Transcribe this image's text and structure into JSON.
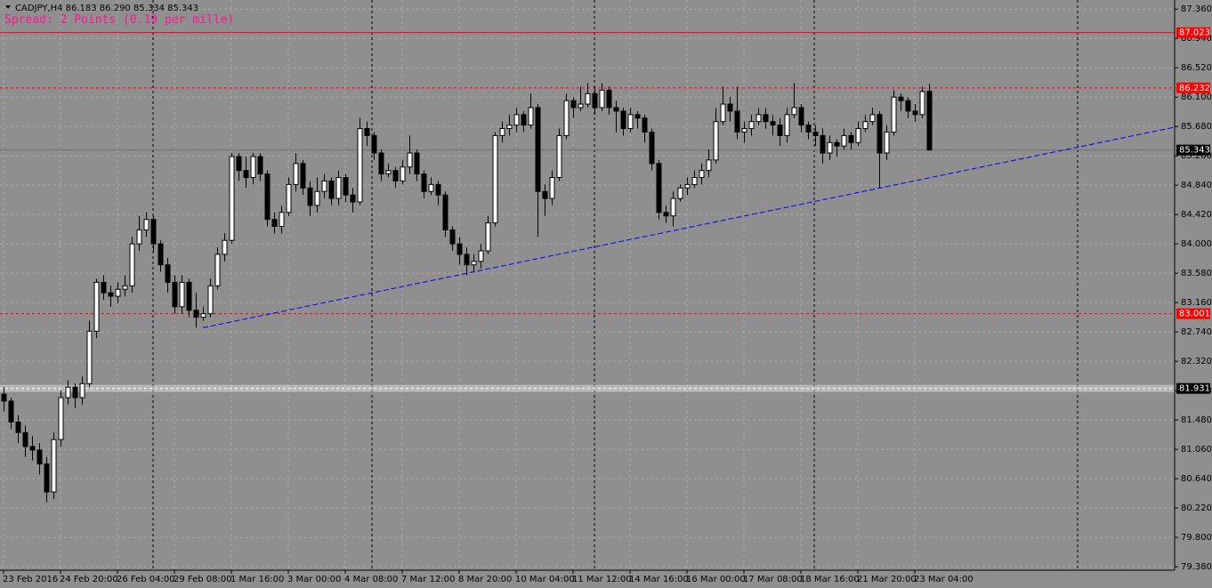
{
  "chart_data": {
    "type": "candlestick",
    "header": "CADJPY,H4  86.183 86.290 85.334 85.343",
    "subtitle": "Spread: 2 Points (0.19 per mille)",
    "categories": [
      "23 Feb 2016",
      null,
      null,
      null,
      null,
      null,
      null,
      null,
      "24 Feb 20:00",
      null,
      null,
      null,
      null,
      null,
      null,
      null,
      "26 Feb 04:00",
      null,
      null,
      null,
      null,
      null,
      null,
      null,
      "29 Feb 08:00",
      null,
      null,
      null,
      null,
      null,
      null,
      null,
      "1 Mar 16:00",
      null,
      null,
      null,
      null,
      null,
      null,
      null,
      "3 Mar 00:00",
      null,
      null,
      null,
      null,
      null,
      null,
      null,
      "4 Mar 08:00",
      null,
      null,
      null,
      null,
      null,
      null,
      null,
      "7 Mar 12:00",
      null,
      null,
      null,
      null,
      null,
      null,
      null,
      "8 Mar 20:00",
      null,
      null,
      null,
      null,
      null,
      null,
      null,
      "10 Mar 04:00",
      null,
      null,
      null,
      null,
      null,
      null,
      null,
      "11 Mar 12:00",
      null,
      null,
      null,
      null,
      null,
      null,
      null,
      "14 Mar 16:00",
      null,
      null,
      null,
      null,
      null,
      null,
      null,
      "16 Mar 00:00",
      null,
      null,
      null,
      null,
      null,
      null,
      null,
      "17 Mar 08:00",
      null,
      null,
      null,
      null,
      null,
      null,
      null,
      "18 Mar 16:00",
      null,
      null,
      null,
      null,
      null,
      null,
      null,
      "21 Mar 20:00",
      null,
      null,
      null,
      null,
      null,
      null,
      null,
      "23 Mar 04:00",
      null,
      null
    ],
    "open": [
      81.85,
      81.75,
      81.45,
      81.3,
      81.1,
      81.05,
      80.85,
      80.45,
      81.2,
      81.8,
      81.95,
      81.8,
      82.0,
      82.75,
      83.45,
      83.3,
      83.25,
      83.35,
      83.4,
      84.0,
      84.2,
      84.35,
      84.0,
      83.7,
      83.45,
      83.1,
      83.45,
      83.05,
      82.95,
      83.0,
      83.4,
      83.85,
      84.05,
      85.25,
      85.05,
      84.95,
      85.25,
      85.0,
      84.35,
      84.25,
      84.45,
      84.85,
      85.15,
      84.8,
      84.55,
      84.75,
      84.9,
      84.65,
      84.95,
      84.7,
      84.6,
      85.65,
      85.55,
      85.3,
      85.0,
      85.05,
      84.9,
      85.1,
      85.3,
      85.0,
      84.75,
      84.85,
      84.7,
      84.2,
      84.0,
      83.85,
      83.7,
      83.75,
      83.9,
      84.3,
      85.55,
      85.65,
      85.7,
      85.85,
      85.7,
      85.95,
      84.75,
      84.65,
      84.95,
      85.55,
      86.05,
      85.95,
      86.0,
      86.15,
      85.95,
      86.2,
      85.95,
      85.9,
      85.65,
      85.85,
      85.8,
      85.6,
      85.15,
      84.45,
      84.4,
      84.65,
      84.8,
      84.85,
      84.95,
      85.05,
      85.2,
      85.75,
      86.0,
      85.9,
      85.6,
      85.65,
      85.75,
      85.85,
      85.75,
      85.7,
      85.55,
      85.85,
      85.95,
      85.7,
      85.6,
      85.55,
      85.3,
      85.45,
      85.4,
      85.55,
      85.45,
      85.65,
      85.75,
      85.85,
      85.3,
      85.6,
      86.1,
      86.05,
      85.9,
      85.85,
      86.183
    ],
    "high": [
      81.95,
      81.8,
      81.55,
      81.4,
      81.25,
      81.15,
      80.95,
      81.3,
      81.9,
      82.05,
      82.0,
      82.1,
      82.9,
      83.5,
      83.55,
      83.4,
      83.45,
      83.55,
      84.1,
      84.4,
      84.45,
      84.4,
      84.05,
      83.8,
      83.55,
      83.55,
      83.5,
      83.3,
      83.1,
      83.5,
      83.95,
      84.15,
      85.3,
      85.3,
      85.25,
      85.3,
      85.3,
      85.05,
      84.45,
      84.55,
      84.95,
      85.3,
      85.2,
      84.9,
      84.95,
      85.0,
      84.95,
      85.05,
      85.0,
      84.8,
      85.8,
      85.75,
      85.6,
      85.35,
      85.15,
      85.1,
      85.2,
      85.55,
      85.35,
      85.05,
      84.95,
      84.9,
      84.75,
      84.25,
      84.1,
      83.95,
      83.85,
      84.0,
      84.4,
      85.6,
      85.75,
      85.85,
      85.95,
      85.9,
      86.15,
      86.0,
      84.85,
      85.05,
      85.65,
      86.15,
      86.1,
      86.25,
      86.3,
      86.25,
      86.3,
      86.25,
      86.05,
      85.95,
      85.95,
      85.9,
      85.85,
      85.65,
      85.2,
      84.55,
      84.75,
      84.85,
      84.95,
      85.05,
      85.15,
      85.35,
      85.95,
      86.25,
      86.1,
      86.25,
      85.75,
      85.85,
      85.95,
      85.95,
      85.85,
      85.8,
      85.95,
      86.3,
      86.0,
      85.75,
      85.7,
      85.65,
      85.55,
      85.5,
      85.65,
      85.6,
      85.75,
      85.85,
      85.95,
      85.9,
      85.7,
      86.2,
      86.15,
      86.1,
      86.0,
      86.25,
      86.29
    ],
    "low": [
      81.6,
      81.35,
      81.15,
      80.95,
      80.9,
      80.7,
      80.3,
      80.35,
      81.1,
      81.7,
      81.65,
      81.7,
      81.95,
      82.65,
      83.2,
      83.1,
      83.15,
      83.25,
      83.3,
      83.9,
      84.1,
      83.9,
      83.6,
      83.3,
      83.0,
      83.0,
      82.95,
      82.8,
      82.9,
      82.95,
      83.35,
      83.75,
      84.0,
      84.9,
      84.8,
      84.85,
      84.9,
      84.25,
      84.15,
      84.15,
      84.4,
      84.75,
      84.7,
      84.4,
      84.45,
      84.65,
      84.55,
      84.55,
      84.6,
      84.45,
      84.55,
      85.4,
      85.2,
      84.9,
      84.95,
      84.8,
      84.85,
      85.0,
      84.9,
      84.65,
      84.7,
      84.55,
      84.1,
      83.9,
      83.7,
      83.55,
      83.6,
      83.65,
      83.85,
      84.25,
      85.45,
      85.55,
      85.6,
      85.6,
      85.65,
      84.1,
      84.4,
      84.55,
      84.9,
      85.5,
      85.8,
      85.9,
      85.95,
      85.85,
      85.9,
      85.85,
      85.6,
      85.55,
      85.6,
      85.65,
      85.45,
      85.05,
      84.35,
      84.3,
      84.25,
      84.6,
      84.7,
      84.8,
      84.85,
      84.95,
      85.15,
      85.7,
      85.75,
      85.5,
      85.45,
      85.55,
      85.7,
      85.65,
      85.55,
      85.4,
      85.45,
      85.8,
      85.6,
      85.5,
      85.4,
      85.15,
      85.2,
      85.25,
      85.35,
      85.35,
      85.4,
      85.6,
      85.7,
      84.8,
      85.2,
      85.55,
      85.9,
      85.8,
      85.75,
      85.8,
      85.334
    ],
    "close": [
      81.75,
      81.45,
      81.3,
      81.1,
      81.05,
      80.85,
      80.45,
      81.2,
      81.8,
      81.95,
      81.8,
      82.0,
      82.75,
      83.45,
      83.3,
      83.25,
      83.35,
      83.4,
      84.0,
      84.2,
      84.35,
      84.0,
      83.7,
      83.45,
      83.1,
      83.45,
      83.05,
      82.95,
      83.0,
      83.4,
      83.85,
      84.05,
      85.25,
      85.05,
      84.95,
      85.25,
      85.0,
      84.35,
      84.25,
      84.45,
      84.85,
      85.15,
      84.8,
      84.55,
      84.75,
      84.9,
      84.65,
      84.95,
      84.7,
      84.6,
      85.65,
      85.55,
      85.3,
      85.0,
      85.05,
      84.9,
      85.1,
      85.3,
      85.0,
      84.75,
      84.85,
      84.7,
      84.2,
      84.0,
      83.85,
      83.7,
      83.75,
      83.9,
      84.3,
      85.55,
      85.65,
      85.7,
      85.85,
      85.7,
      85.95,
      84.75,
      84.65,
      84.95,
      85.55,
      86.05,
      85.95,
      86.0,
      86.15,
      85.95,
      86.2,
      85.95,
      85.9,
      85.65,
      85.85,
      85.8,
      85.6,
      85.15,
      84.45,
      84.4,
      84.65,
      84.8,
      84.85,
      84.95,
      85.05,
      85.2,
      85.75,
      86.0,
      85.9,
      85.6,
      85.65,
      85.75,
      85.85,
      85.75,
      85.7,
      85.55,
      85.85,
      85.95,
      85.7,
      85.6,
      85.55,
      85.3,
      85.45,
      85.4,
      85.55,
      85.45,
      85.65,
      85.75,
      85.85,
      85.3,
      85.6,
      86.1,
      86.05,
      85.9,
      85.85,
      86.18,
      85.343
    ],
    "up_color": "#ffffff",
    "down_color": "#000000",
    "ylim": [
      79.33,
      87.49
    ],
    "yticks": [
      {
        "value": 87.36,
        "label": "87.360"
      },
      {
        "value": 86.94,
        "label": "86.940"
      },
      {
        "value": 86.52,
        "label": "86.520"
      },
      {
        "value": 86.1,
        "label": "86.100"
      },
      {
        "value": 85.68,
        "label": "85.680"
      },
      {
        "value": 85.26,
        "label": "85.260"
      },
      {
        "value": 84.84,
        "label": "84.840"
      },
      {
        "value": 84.42,
        "label": "84.420"
      },
      {
        "value": 84,
        "label": "84.000"
      },
      {
        "value": 83.58,
        "label": "83.580"
      },
      {
        "value": 83.16,
        "label": "83.160"
      },
      {
        "value": 82.74,
        "label": "82.740"
      },
      {
        "value": 82.32,
        "label": "82.320"
      },
      {
        "value": 81.9,
        "label": "81.900"
      },
      {
        "value": 81.48,
        "label": "81.480"
      },
      {
        "value": 81.06,
        "label": "81.060"
      },
      {
        "value": 80.64,
        "label": "80.640"
      },
      {
        "value": 80.22,
        "label": "80.220"
      },
      {
        "value": 79.8,
        "label": "79.800"
      },
      {
        "value": 79.38,
        "label": "79.380"
      }
    ],
    "grid": true,
    "levels": [
      {
        "value": 87.023,
        "color": "#ff0000",
        "style": "solid"
      },
      {
        "value": 86.232,
        "color": "#ff0000",
        "style": "dashed"
      },
      {
        "value": 85.343,
        "color": "#707070",
        "style": "solid"
      },
      {
        "value": 83.001,
        "color": "#ff0000",
        "style": "dashed"
      },
      {
        "value": 81.931,
        "color": "#d8d8d8",
        "style": "band"
      }
    ],
    "trend_line": {
      "from": 82.8,
      "to": 85.67,
      "color": "#0000ff"
    }
  }
}
